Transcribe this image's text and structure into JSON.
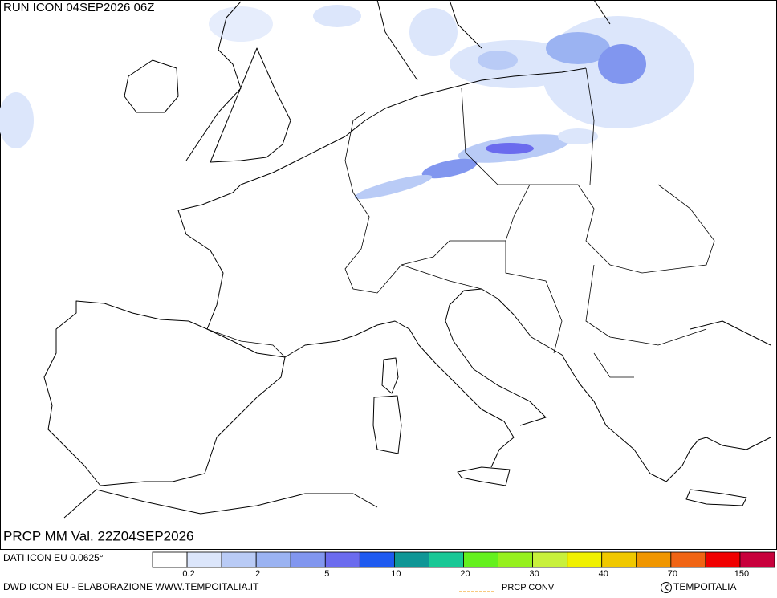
{
  "header": {
    "run": "RUN ICON 04SEP2026 06Z"
  },
  "map": {
    "title": "PRCP MM Val. 22Z04SEP2026"
  },
  "legend": {
    "source": "DATI ICON EU 0.0625°",
    "colors": [
      "#ffffff",
      "#dce6fb",
      "#b9cbf6",
      "#9bb3f2",
      "#8196ef",
      "#6b6bee",
      "#1e5af0",
      "#0f9696",
      "#19c896",
      "#64f01e",
      "#96f01e",
      "#c8f03c",
      "#f0f000",
      "#f0c800",
      "#f09600",
      "#f06414",
      "#f00000",
      "#c8003c"
    ],
    "labels": [
      0.2,
      null,
      2,
      null,
      5,
      null,
      10,
      null,
      20,
      null,
      30,
      null,
      40,
      null,
      70,
      null,
      150
    ]
  },
  "footer": {
    "credit": "DWD ICON EU - ELABORAZIONE WWW.TEMPOITALIA.IT",
    "conv": "PRCP CONV",
    "brand": "TEMPOITALIA"
  }
}
